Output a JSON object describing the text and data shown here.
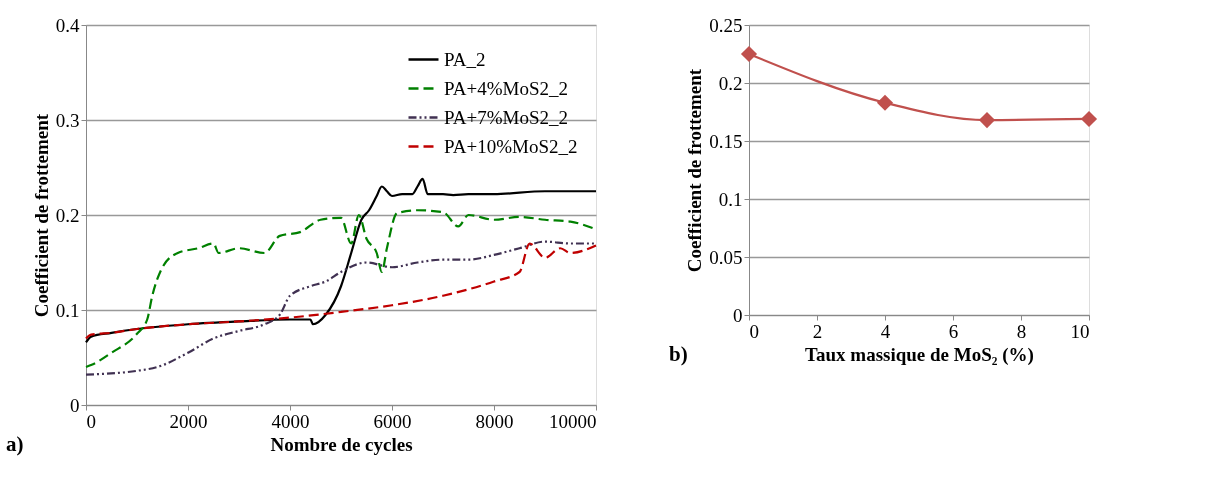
{
  "chart_data": [
    {
      "type": "line",
      "xlabel": "Nombre de cycles",
      "ylabel": "Coefficient de frottement",
      "xlim": [
        0,
        10000
      ],
      "xticks": [
        0,
        2000,
        4000,
        6000,
        8000,
        10000
      ],
      "ylim": [
        0,
        0.4
      ],
      "yticks": [
        0,
        0.1,
        0.2,
        0.3,
        0.4
      ],
      "grid": "y",
      "legend": "top right",
      "marker": "none",
      "annotations": [
        "a)"
      ],
      "series": [
        {
          "name": "PA_2",
          "color": "#000000",
          "line_style": "solid",
          "x": [
            0,
            100,
            500,
            1000,
            2000,
            3000,
            4000,
            4400,
            4450,
            4700,
            5000,
            5200,
            5400,
            5550,
            5700,
            5800,
            5900,
            6000,
            6200,
            6400,
            6500,
            6600,
            6700,
            7000,
            7200,
            7500,
            8000,
            9000,
            10000
          ],
          "values": [
            0.066,
            0.072,
            0.076,
            0.08,
            0.085,
            0.088,
            0.09,
            0.09,
            0.085,
            0.095,
            0.125,
            0.16,
            0.195,
            0.205,
            0.22,
            0.23,
            0.225,
            0.22,
            0.222,
            0.222,
            0.23,
            0.238,
            0.222,
            0.222,
            0.221,
            0.222,
            0.222,
            0.225,
            0.225
          ]
        },
        {
          "name": "PA+4%MoS2_2",
          "color": "#008000",
          "line_style": "dashed",
          "x": [
            0,
            100,
            500,
            1000,
            1200,
            1300,
            1500,
            1800,
            2200,
            2500,
            2600,
            3000,
            3500,
            3800,
            4200,
            4600,
            5000,
            5200,
            5350,
            5500,
            5700,
            5800,
            5900,
            6100,
            6500,
            7000,
            7300,
            7500,
            8000,
            8500,
            9000,
            9500,
            10000
          ],
          "values": [
            0.04,
            0.042,
            0.055,
            0.075,
            0.09,
            0.115,
            0.145,
            0.16,
            0.165,
            0.17,
            0.16,
            0.165,
            0.16,
            0.178,
            0.182,
            0.195,
            0.197,
            0.17,
            0.2,
            0.175,
            0.16,
            0.14,
            0.165,
            0.202,
            0.205,
            0.203,
            0.188,
            0.2,
            0.195,
            0.198,
            0.195,
            0.193,
            0.185
          ]
        },
        {
          "name": "PA+7%MoS2_2",
          "color": "#403152",
          "line_style": "dotted",
          "x": [
            0,
            1000,
            1400,
            2000,
            2500,
            3000,
            3500,
            3800,
            4000,
            4400,
            4700,
            5000,
            5500,
            6000,
            6500,
            7000,
            7500,
            8000,
            8500,
            9000,
            9500,
            10000
          ],
          "values": [
            0.032,
            0.036,
            0.04,
            0.055,
            0.07,
            0.078,
            0.085,
            0.095,
            0.115,
            0.125,
            0.13,
            0.14,
            0.15,
            0.145,
            0.15,
            0.153,
            0.153,
            0.158,
            0.165,
            0.172,
            0.17,
            0.17
          ]
        },
        {
          "name": "PA+10%MoS2_2",
          "color": "#c00000",
          "line_style": "dashed",
          "x": [
            0,
            100,
            500,
            1000,
            2000,
            3000,
            4000,
            5000,
            6000,
            7000,
            8000,
            8500,
            8700,
            9000,
            9300,
            9500,
            10000
          ],
          "values": [
            0.07,
            0.074,
            0.076,
            0.08,
            0.085,
            0.088,
            0.092,
            0.098,
            0.105,
            0.115,
            0.13,
            0.14,
            0.17,
            0.155,
            0.165,
            0.16,
            0.168
          ]
        }
      ]
    },
    {
      "type": "line",
      "xlabel": "Taux massique de MoS₂ (%)",
      "ylabel": "Coefficient de frottement",
      "xlim": [
        0,
        10
      ],
      "xticks": [
        0,
        2,
        4,
        6,
        8,
        10
      ],
      "ylim": [
        0,
        0.25
      ],
      "yticks": [
        0,
        0.05,
        0.1,
        0.15,
        0.2,
        0.25
      ],
      "grid": "y",
      "legend": false,
      "marker": "diamond",
      "annotations": [
        "b)"
      ],
      "series": [
        {
          "color": "#c0504d",
          "x": [
            0,
            4,
            7,
            10
          ],
          "values": [
            0.225,
            0.183,
            0.168,
            0.169
          ]
        }
      ]
    }
  ]
}
